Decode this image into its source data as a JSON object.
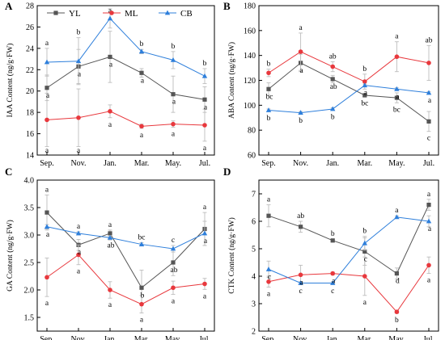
{
  "legend": [
    {
      "name": "YL",
      "color": "#555555",
      "marker": "square"
    },
    {
      "name": "ML",
      "color": "#e8383d",
      "marker": "circle"
    },
    {
      "name": "CB",
      "color": "#2e7fdb",
      "marker": "triangle"
    }
  ],
  "chart_data": [
    {
      "type": "line",
      "panel": "A",
      "ylabel": "IAA Content (ng/g·FW)",
      "xlabel": "",
      "categories": [
        "Sep.",
        "Nov.",
        "Jan.",
        "Mar.",
        "May.",
        "Jul."
      ],
      "ylim": [
        14,
        28
      ],
      "yticks": [
        14,
        16,
        18,
        20,
        22,
        24,
        26,
        28
      ],
      "ytick_labels": [
        "14",
        "16",
        "18",
        "20",
        "22",
        "24",
        "26",
        "28"
      ],
      "series": [
        {
          "name": "YL",
          "values": [
            20.3,
            22.3,
            23.2,
            21.7,
            19.7,
            19.2
          ],
          "errors": [
            1.2,
            1.6,
            2.4,
            0.4,
            1.7,
            1.2
          ],
          "labels": [
            "a",
            "a",
            "a",
            "a",
            "a",
            "a"
          ]
        },
        {
          "name": "ML",
          "values": [
            17.3,
            17.5,
            18.1,
            16.7,
            16.9,
            16.8
          ],
          "errors": [
            2.5,
            2.7,
            0.6,
            0.2,
            0.3,
            1.5
          ],
          "labels": [
            "a",
            "a",
            "a",
            "a",
            "a",
            "a"
          ]
        },
        {
          "name": "CB",
          "values": [
            22.7,
            22.8,
            26.8,
            23.7,
            22.9,
            21.4
          ],
          "errors": [
            1.3,
            2.2,
            0.9,
            0.2,
            0.8,
            0.7
          ],
          "labels": [
            "a",
            "b",
            "a",
            "b",
            "b",
            "b"
          ]
        }
      ]
    },
    {
      "type": "line",
      "panel": "B",
      "ylabel": "ABA Content (ng/g·FW)",
      "xlabel": "",
      "categories": [
        "Sep.",
        "Nov.",
        "Jan.",
        "Mar.",
        "May.",
        "Jul."
      ],
      "ylim": [
        60,
        180
      ],
      "yticks": [
        60,
        80,
        100,
        120,
        140,
        160,
        180
      ],
      "ytick_labels": [
        "60",
        "80",
        "100",
        "120",
        "140",
        "160",
        "180"
      ],
      "series": [
        {
          "name": "YL",
          "values": [
            113,
            134,
            121,
            108,
            106,
            87
          ],
          "errors": [
            5,
            7,
            3,
            1,
            4,
            8
          ],
          "labels": [
            "bc",
            "a",
            "ab",
            "bc",
            "bc",
            "c"
          ]
        },
        {
          "name": "ML",
          "values": [
            126,
            143,
            131,
            119,
            139,
            134
          ],
          "errors": [
            3,
            15,
            4,
            6,
            12,
            14
          ],
          "labels": [
            "b",
            "a",
            "ab",
            "b",
            "a",
            "ab"
          ]
        },
        {
          "name": "CB",
          "values": [
            96,
            94,
            97,
            116,
            113,
            110
          ],
          "errors": [
            1,
            1,
            1,
            1,
            1,
            1
          ],
          "labels": [
            "b",
            "b",
            "b",
            "a",
            "a",
            "a"
          ]
        }
      ]
    },
    {
      "type": "line",
      "panel": "C",
      "ylabel": "GA Content (ng/g·FW)",
      "xlabel": "",
      "categories": [
        "Sep.",
        "Nov.",
        "Jan.",
        "Mar.",
        "May.",
        "Jul."
      ],
      "ylim": [
        1.25,
        4.0
      ],
      "yticks": [
        1.5,
        2.0,
        2.5,
        3.0,
        3.5,
        4.0
      ],
      "ytick_labels": [
        "1.5",
        "2.0",
        "2.5",
        "3.0",
        "3.5",
        "4.0"
      ],
      "series": [
        {
          "name": "YL",
          "values": [
            3.41,
            2.82,
            3.03,
            2.04,
            2.5,
            3.11
          ],
          "errors": [
            0.32,
            0.1,
            0.06,
            0.32,
            0.24,
            0.3
          ],
          "labels": [
            "a",
            "a",
            "a",
            "b",
            "ab",
            "a"
          ]
        },
        {
          "name": "ML",
          "values": [
            2.23,
            2.64,
            2.0,
            1.74,
            2.04,
            2.11
          ],
          "errors": [
            0.35,
            0.18,
            0.15,
            0.16,
            0.12,
            0.1
          ],
          "labels": [
            "a",
            "a",
            "a",
            "a",
            "a",
            "a"
          ]
        },
        {
          "name": "CB",
          "values": [
            3.15,
            3.03,
            2.95,
            2.83,
            2.75,
            3.03
          ],
          "errors": [
            0.04,
            0.03,
            0.04,
            0.03,
            0.06,
            0.22
          ],
          "labels": [
            "a",
            "a",
            "ab",
            "bc",
            "c",
            "a"
          ]
        }
      ]
    },
    {
      "type": "line",
      "panel": "D",
      "ylabel": "CTK Content (ng/g·FW)",
      "xlabel": "",
      "categories": [
        "Sep.",
        "Nov.",
        "Jan.",
        "Mar.",
        "May.",
        "Jul."
      ],
      "ylim": [
        2,
        7.5
      ],
      "yticks": [
        2,
        3,
        4,
        5,
        6,
        7
      ],
      "ytick_labels": [
        "2",
        "3",
        "4",
        "5",
        "6",
        "7"
      ],
      "series": [
        {
          "name": "YL",
          "values": [
            6.2,
            5.8,
            5.3,
            4.9,
            4.1,
            6.6
          ],
          "errors": [
            0.4,
            0.2,
            0.05,
            0.5,
            0.2,
            0.2
          ],
          "labels": [
            "a",
            "ab",
            "b",
            "c",
            "d",
            "a"
          ]
        },
        {
          "name": "ML",
          "values": [
            3.8,
            4.05,
            4.1,
            4.0,
            2.7,
            4.4
          ],
          "errors": [
            0.2,
            0.35,
            0.05,
            0.7,
            0.05,
            0.3
          ],
          "labels": [
            "a",
            "a",
            "a",
            "a",
            "b",
            "a"
          ]
        },
        {
          "name": "CB",
          "values": [
            4.25,
            3.75,
            3.75,
            5.2,
            6.15,
            6.0
          ],
          "errors": [
            0.3,
            0.05,
            0.05,
            0.25,
            0.05,
            0.2
          ],
          "labels": [
            "c",
            "c",
            "c",
            "b",
            "a",
            "a"
          ]
        }
      ]
    }
  ]
}
